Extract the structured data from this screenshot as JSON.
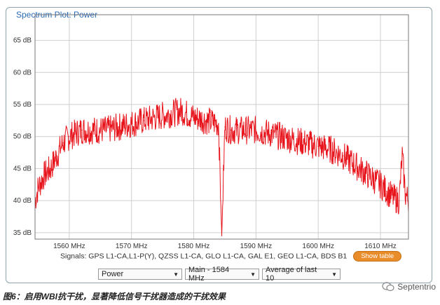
{
  "panel": {
    "title": "Spectrum Plot: Power"
  },
  "chart_data": {
    "type": "line",
    "title": "Spectrum Plot: Power",
    "xlabel": "",
    "ylabel": "",
    "x_range": [
      1554.5,
      1614.5
    ],
    "ylim": [
      34,
      69
    ],
    "x_ticks": [
      1560,
      1570,
      1580,
      1590,
      1600,
      1610
    ],
    "x_tick_labels": [
      "1560 MHz",
      "1570 MHz",
      "1580 MHz",
      "1590 MHz",
      "1600 MHz",
      "1610 MHz"
    ],
    "y_ticks": [
      35,
      40,
      45,
      50,
      55,
      60,
      65
    ],
    "y_tick_labels": [
      "35 dB",
      "40 dB",
      "45 dB",
      "50 dB",
      "55 dB",
      "60 dB",
      "65 dB"
    ],
    "grid": true,
    "line_color": "#e8141c",
    "series": [
      {
        "x": [
          1554.5,
          1555,
          1556,
          1557,
          1558,
          1559,
          1560,
          1562,
          1564,
          1566,
          1568,
          1570,
          1572,
          1574,
          1576,
          1578,
          1580,
          1582,
          1584,
          1584.5,
          1585,
          1586,
          1588,
          1590,
          1592,
          1594,
          1596,
          1598,
          1600,
          1602,
          1604,
          1606,
          1608,
          1610,
          1611,
          1612,
          1613,
          1613.5,
          1614,
          1614.5
        ],
        "y": [
          40,
          42,
          44,
          45,
          47,
          49,
          50,
          51,
          51,
          51,
          51.5,
          52,
          52.5,
          53,
          53.5,
          54,
          53,
          52.5,
          52,
          34.5,
          51.5,
          51,
          51,
          51,
          50.5,
          50,
          49.5,
          49,
          48.5,
          48,
          47,
          45.5,
          44,
          42.5,
          41.5,
          40.5,
          40,
          47,
          41,
          40
        ]
      }
    ]
  },
  "signals": {
    "text": "Signals: GPS L1-CA,L1-P(Y), QZSS L1-CA, GLO L1-CA, GAL E1, GEO L1-CA, BDS B1",
    "show_table": "Show table"
  },
  "controls": {
    "measure": "Power",
    "antenna": "Main - 1584 MHz",
    "averaging": "Average of last 10",
    "arrow": "▼"
  },
  "caption": "图6：启用WBI抗干扰，显著降低信号干扰器造成的干扰效果",
  "brand": "Septentrio"
}
